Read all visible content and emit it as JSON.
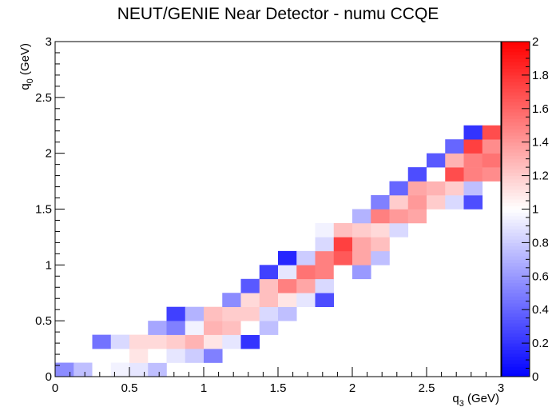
{
  "chart_data": {
    "type": "heatmap",
    "title": "NEUT/GENIE Near Detector - numu CCQE",
    "xlabel_main": "q",
    "xlabel_sub": "3",
    "xlabel_unit": " (GeV)",
    "ylabel_main": "q",
    "ylabel_sub": "0",
    "ylabel_unit": " (GeV)",
    "xlim": [
      0,
      3
    ],
    "ylim": [
      0,
      3
    ],
    "zlim": [
      0,
      2
    ],
    "nbins": 24,
    "x_ticks": [
      "0",
      "0.5",
      "1",
      "1.5",
      "2",
      "2.5",
      "3"
    ],
    "y_ticks": [
      "0",
      "0.5",
      "1",
      "1.5",
      "2",
      "2.5",
      "3"
    ],
    "z_ticks": [
      "0",
      "0.2",
      "0.4",
      "0.6",
      "0.8",
      "1",
      "1.2",
      "1.4",
      "1.6",
      "1.8",
      "2"
    ],
    "colorscale": [
      "#0000ff",
      "#ffffff",
      "#ff0000"
    ],
    "cells": [
      [
        0,
        0,
        0.55
      ],
      [
        1,
        0,
        0.75
      ],
      [
        2,
        0,
        1.0
      ],
      [
        3,
        0,
        0.95
      ],
      [
        4,
        0,
        0.9
      ],
      [
        5,
        0,
        0.75
      ],
      [
        4,
        1,
        1.1
      ],
      [
        5,
        1,
        1.0
      ],
      [
        6,
        1,
        0.9
      ],
      [
        7,
        1,
        0.8
      ],
      [
        8,
        1,
        0.5
      ],
      [
        2,
        2,
        0.45
      ],
      [
        3,
        2,
        0.85
      ],
      [
        4,
        2,
        1.15
      ],
      [
        5,
        2,
        1.15
      ],
      [
        6,
        2,
        1.2
      ],
      [
        7,
        2,
        1.3
      ],
      [
        8,
        2,
        1.1
      ],
      [
        9,
        2,
        0.9
      ],
      [
        10,
        2,
        0.2
      ],
      [
        5,
        3,
        0.65
      ],
      [
        6,
        3,
        0.5
      ],
      [
        7,
        3,
        0.95
      ],
      [
        8,
        3,
        1.3
      ],
      [
        9,
        3,
        1.25
      ],
      [
        10,
        3,
        1.0
      ],
      [
        11,
        3,
        0.75
      ],
      [
        6,
        4,
        0.25
      ],
      [
        7,
        4,
        0.7
      ],
      [
        8,
        4,
        1.25
      ],
      [
        9,
        4,
        1.2
      ],
      [
        10,
        4,
        1.2
      ],
      [
        11,
        4,
        0.85
      ],
      [
        12,
        4,
        0.75
      ],
      [
        9,
        5,
        0.55
      ],
      [
        10,
        5,
        1.15
      ],
      [
        11,
        5,
        1.25
      ],
      [
        12,
        5,
        1.1
      ],
      [
        13,
        5,
        0.9
      ],
      [
        14,
        5,
        0.3
      ],
      [
        10,
        6,
        0.35
      ],
      [
        11,
        6,
        1.25
      ],
      [
        12,
        6,
        1.5
      ],
      [
        13,
        6,
        1.35
      ],
      [
        14,
        6,
        0.85
      ],
      [
        11,
        7,
        0.25
      ],
      [
        12,
        7,
        0.9
      ],
      [
        13,
        7,
        1.55
      ],
      [
        14,
        7,
        1.5
      ],
      [
        15,
        7,
        1.0
      ],
      [
        16,
        7,
        0.6
      ],
      [
        12,
        8,
        0.15
      ],
      [
        13,
        8,
        0.8
      ],
      [
        14,
        8,
        1.5
      ],
      [
        15,
        8,
        1.65
      ],
      [
        16,
        8,
        1.35
      ],
      [
        17,
        8,
        0.75
      ],
      [
        14,
        9,
        0.85
      ],
      [
        15,
        9,
        1.75
      ],
      [
        16,
        9,
        1.35
      ],
      [
        17,
        9,
        1.25
      ],
      [
        14,
        10,
        0.95
      ],
      [
        15,
        10,
        1.25
      ],
      [
        16,
        10,
        1.2
      ],
      [
        17,
        10,
        1.15
      ],
      [
        18,
        10,
        0.85
      ],
      [
        16,
        11,
        0.7
      ],
      [
        17,
        11,
        1.5
      ],
      [
        18,
        11,
        1.4
      ],
      [
        19,
        11,
        1.35
      ],
      [
        20,
        11,
        1.0
      ],
      [
        17,
        12,
        0.5
      ],
      [
        18,
        12,
        1.2
      ],
      [
        19,
        12,
        1.4
      ],
      [
        20,
        12,
        1.2
      ],
      [
        21,
        12,
        0.85
      ],
      [
        22,
        12,
        0.3
      ],
      [
        18,
        13,
        0.4
      ],
      [
        19,
        13,
        1.35
      ],
      [
        20,
        13,
        1.3
      ],
      [
        21,
        13,
        1.2
      ],
      [
        22,
        13,
        0.75
      ],
      [
        19,
        14,
        0.3
      ],
      [
        20,
        14,
        1.0
      ],
      [
        21,
        14,
        1.7
      ],
      [
        22,
        14,
        1.5
      ],
      [
        23,
        14,
        1.45
      ],
      [
        20,
        15,
        0.35
      ],
      [
        21,
        15,
        1.3
      ],
      [
        22,
        15,
        1.5
      ],
      [
        23,
        15,
        1.55
      ],
      [
        21,
        16,
        0.4
      ],
      [
        22,
        16,
        1.75
      ],
      [
        23,
        16,
        1.45
      ],
      [
        24,
        16,
        1.25
      ],
      [
        25,
        16,
        0.8
      ],
      [
        22,
        17,
        0.2
      ],
      [
        23,
        17,
        1.7
      ],
      [
        24,
        17,
        1.35
      ],
      [
        25,
        17,
        1.85
      ],
      [
        26,
        17,
        0.35
      ],
      [
        24,
        18,
        0.25
      ],
      [
        25,
        18,
        1.85
      ],
      [
        26,
        18,
        1.45
      ],
      [
        25,
        19,
        0.3
      ],
      [
        26,
        19,
        0.95
      ],
      [
        27,
        19,
        1.6
      ],
      [
        28,
        19,
        1.95
      ],
      [
        26,
        20,
        0.1
      ],
      [
        27,
        20,
        0.65
      ],
      [
        28,
        20,
        1.65
      ],
      [
        27,
        21,
        0.2
      ],
      [
        28,
        21,
        1.15
      ]
    ]
  }
}
